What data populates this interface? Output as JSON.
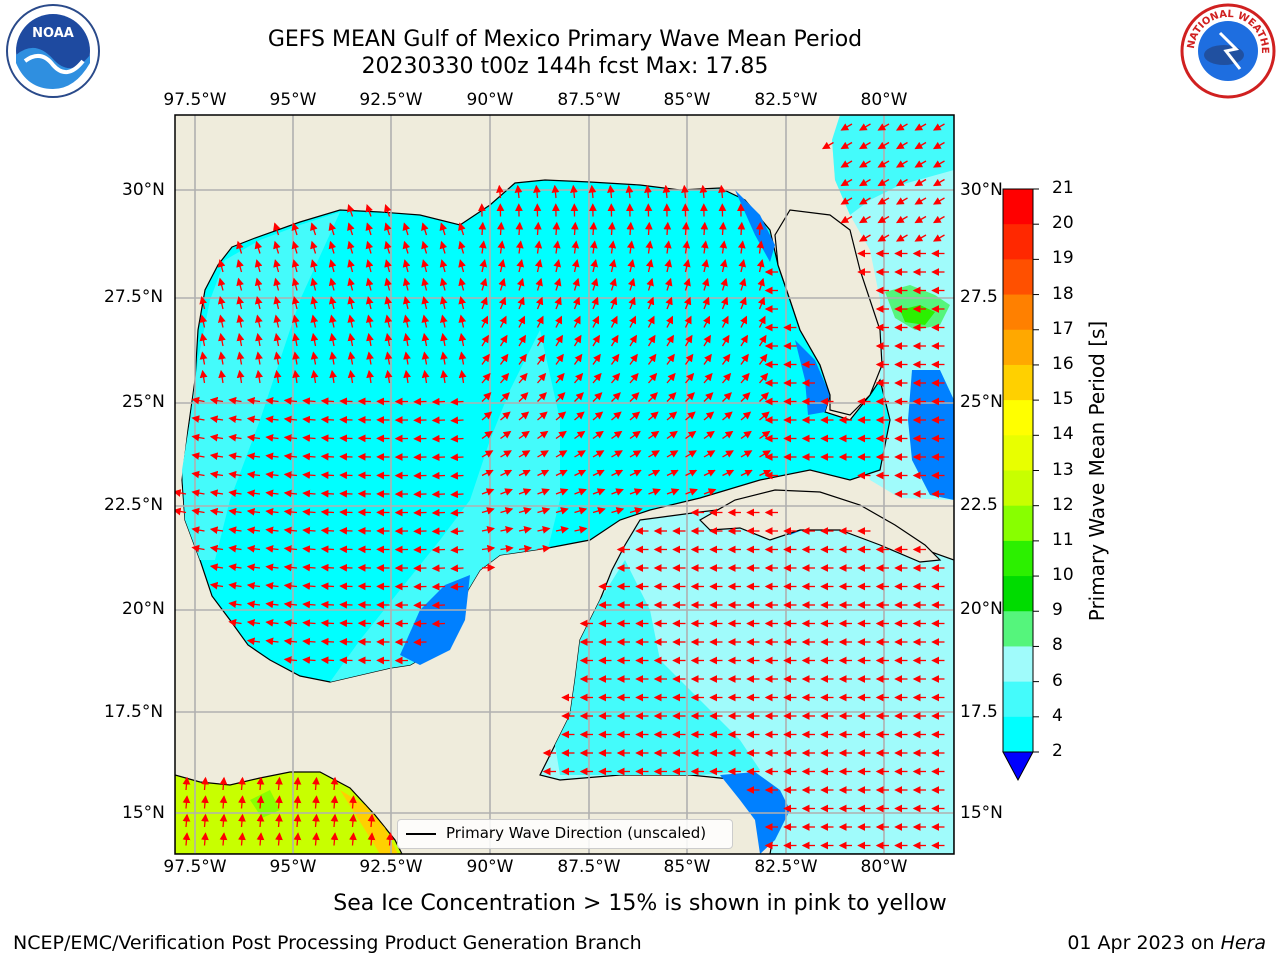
{
  "header": {
    "title_line1": "GEFS MEAN Gulf of Mexico Primary Wave Mean Period",
    "title_line2": "20230330 t00z 144h fcst   Max: 17.85",
    "left_logo_text": "NOAA",
    "right_logo_text": "NATIONAL WEATHER SERVICE"
  },
  "map": {
    "lon_ticks": [
      "97.5°W",
      "95°W",
      "92.5°W",
      "90°W",
      "87.5°W",
      "85°W",
      "82.5°W",
      "80°W"
    ],
    "lat_ticks_left": [
      "30°N",
      "27.5°N",
      "25°N",
      "22.5°N",
      "20°N",
      "17.5°N",
      "15°N"
    ],
    "lat_ticks_right": [
      "30°N",
      "27.5",
      "25°N",
      "22.5",
      "20°N",
      "17.5",
      "15°N"
    ],
    "legend_label": "Primary Wave Direction (unscaled)",
    "colors": {
      "land": "#efecdc",
      "water_cyan": "#00ffff",
      "water_mid": "#44fbfb",
      "water_light": "#a0fbfb",
      "water_blue": "#0080ff",
      "arrow": "#ff0000",
      "grid": "#b0b0b0"
    }
  },
  "colorbar": {
    "label": "Primary Wave Mean Period [s]",
    "ticks": [
      "21",
      "20",
      "19",
      "18",
      "17",
      "16",
      "15",
      "14",
      "13",
      "12",
      "11",
      "10",
      "9",
      "8",
      "6",
      "4",
      "2"
    ],
    "colors": [
      "#ff0000",
      "#ff2800",
      "#ff5000",
      "#ff8000",
      "#ffa800",
      "#ffd000",
      "#ffff00",
      "#e8ff00",
      "#c8ff00",
      "#88ff00",
      "#2cf000",
      "#00dc00",
      "#55f57c",
      "#a0fbfb",
      "#44fbfb",
      "#00ffff",
      "#0080ff"
    ],
    "extend_color": "#0000ff"
  },
  "footer": {
    "note": "Sea Ice Concentration > 15% is shown in pink to yellow",
    "credit": "NCEP/EMC/Verification Post Processing Product Generation Branch",
    "date_prefix": "01 Apr 2023 on ",
    "host": "Hera"
  }
}
